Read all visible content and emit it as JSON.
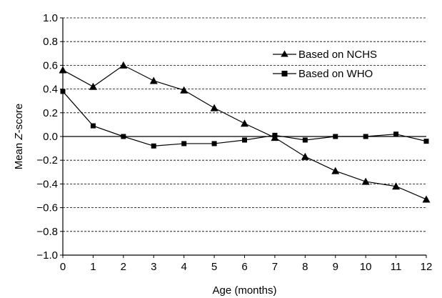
{
  "chart_data": {
    "type": "line",
    "xlabel": "Age (months)",
    "ylabel_prefix": "Mean ",
    "ylabel_italic": "Z",
    "ylabel_suffix": "-score",
    "x": [
      0,
      1,
      2,
      3,
      4,
      5,
      6,
      7,
      8,
      9,
      10,
      11,
      12
    ],
    "xlim": [
      0,
      12
    ],
    "ylim": [
      -1.0,
      1.0
    ],
    "x_ticks": [
      "0",
      "1",
      "2",
      "3",
      "4",
      "5",
      "6",
      "7",
      "8",
      "9",
      "10",
      "11",
      "12"
    ],
    "y_ticks": [
      {
        "value": 1.0,
        "label": "1.0"
      },
      {
        "value": 0.8,
        "label": "0.8"
      },
      {
        "value": 0.6,
        "label": "0.6"
      },
      {
        "value": 0.4,
        "label": "0.4"
      },
      {
        "value": 0.2,
        "label": "0.2"
      },
      {
        "value": 0.0,
        "label": "0.0"
      },
      {
        "value": -0.2,
        "label": "−0.2"
      },
      {
        "value": -0.4,
        "label": "−0.4"
      },
      {
        "value": -0.6,
        "label": "−0.6"
      },
      {
        "value": -0.8,
        "label": "−0.8"
      },
      {
        "value": -1.0,
        "label": "−1.0"
      }
    ],
    "grid": "horizontal dashed",
    "legend_position": "top-right",
    "series": [
      {
        "name": "Based on NCHS",
        "marker": "triangle",
        "color": "#000000",
        "values": [
          0.56,
          0.42,
          0.6,
          0.47,
          0.39,
          0.24,
          0.11,
          -0.01,
          -0.17,
          -0.29,
          -0.38,
          -0.42,
          -0.53
        ]
      },
      {
        "name": "Based on WHO",
        "marker": "square",
        "color": "#000000",
        "values": [
          0.38,
          0.09,
          0.0,
          -0.08,
          -0.06,
          -0.06,
          -0.03,
          0.01,
          -0.03,
          0.0,
          0.0,
          0.02,
          -0.04
        ]
      }
    ]
  }
}
